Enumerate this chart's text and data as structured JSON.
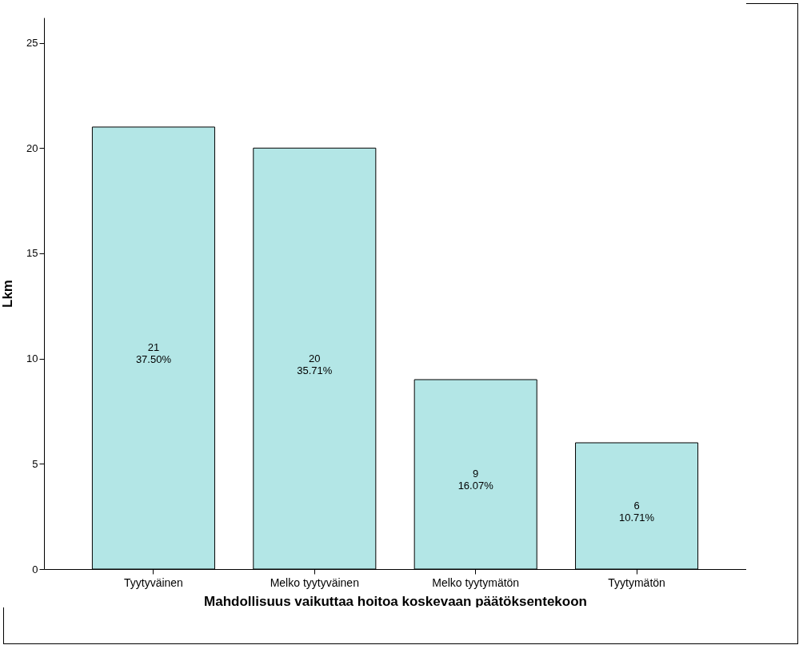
{
  "chart_data": {
    "type": "bar",
    "xlabel": "Mahdollisuus vaikuttaa hoitoa koskevaan päätöksentekoon",
    "ylabel": "Lkm",
    "categories": [
      "Tyytyväinen",
      "Melko tyytyväinen",
      "Melko tyytymätön",
      "Tyytymätön"
    ],
    "values": [
      21,
      20,
      9,
      6
    ],
    "value_labels": [
      "21\n37.50%",
      "20\n35.71%",
      "9\n16.07%",
      "6\n10.71%"
    ],
    "color": "#b3e6e6",
    "ylim": [
      0,
      26.2
    ],
    "yticks": [
      0,
      5,
      10,
      15,
      20,
      25
    ],
    "grid": false
  }
}
